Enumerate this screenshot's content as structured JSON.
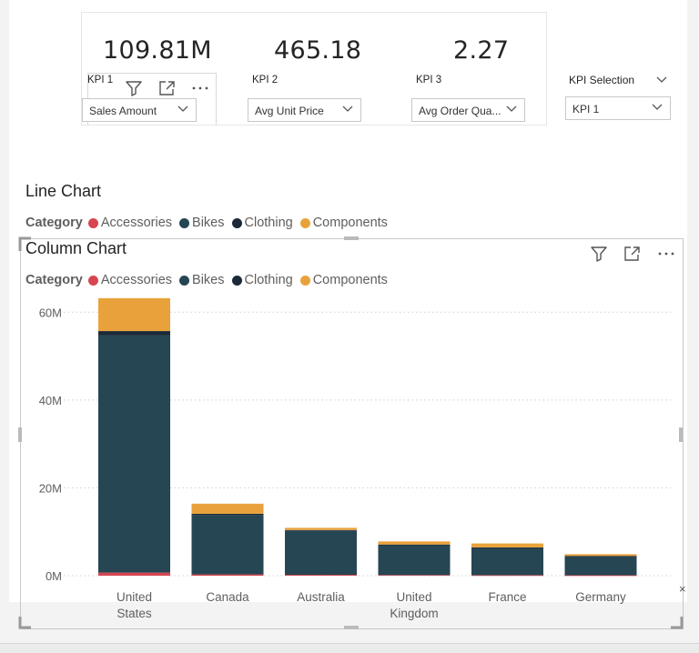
{
  "kpi_card": {
    "kpis": [
      {
        "value": "109.81M",
        "label": "KPI 1",
        "selected": "Sales Amount"
      },
      {
        "value": "465.18",
        "label": "KPI 2",
        "selected": "Avg Unit Price"
      },
      {
        "value": "2.27",
        "label": "KPI 3",
        "selected": "Avg Order Qua..."
      }
    ]
  },
  "kpi_selection": {
    "title": "KPI Selection",
    "selected": "KPI 1"
  },
  "line_chart": {
    "title": "Line Chart",
    "legend_title": "Category",
    "legend": [
      "Accessories",
      "Bikes",
      "Clothing",
      "Components"
    ]
  },
  "column_chart": {
    "title": "Column Chart",
    "legend_title": "Category",
    "legend": [
      "Accessories",
      "Bikes",
      "Clothing",
      "Components"
    ]
  },
  "colors": {
    "Accessories": "#d64550",
    "Bikes": "#264653",
    "Clothing": "#1b2a38",
    "Components": "#e9a23b",
    "gridline": "#d0d0d0"
  },
  "icons": [
    "filter-icon",
    "focus-mode-icon",
    "more-options-icon",
    "chevron-down-icon",
    "close-icon"
  ],
  "close_mark": "×",
  "chart_data": {
    "type": "bar",
    "stacked": true,
    "categories": [
      "United States",
      "Canada",
      "Australia",
      "United Kingdom",
      "France",
      "Germany"
    ],
    "series": [
      {
        "name": "Accessories",
        "values": [
          0.7,
          0.3,
          0.2,
          0.15,
          0.12,
          0.1
        ]
      },
      {
        "name": "Bikes",
        "values": [
          54.0,
          13.5,
          10.0,
          6.8,
          6.2,
          4.3
        ]
      },
      {
        "name": "Clothing",
        "values": [
          1.0,
          0.3,
          0.2,
          0.15,
          0.12,
          0.1
        ]
      },
      {
        "name": "Components",
        "values": [
          7.5,
          2.3,
          0.5,
          0.7,
          0.9,
          0.4
        ]
      }
    ],
    "y_ticks": [
      "0M",
      "20M",
      "40M",
      "60M"
    ],
    "ylim": [
      0,
      70
    ],
    "grid": true,
    "legend_position": "top-left"
  }
}
